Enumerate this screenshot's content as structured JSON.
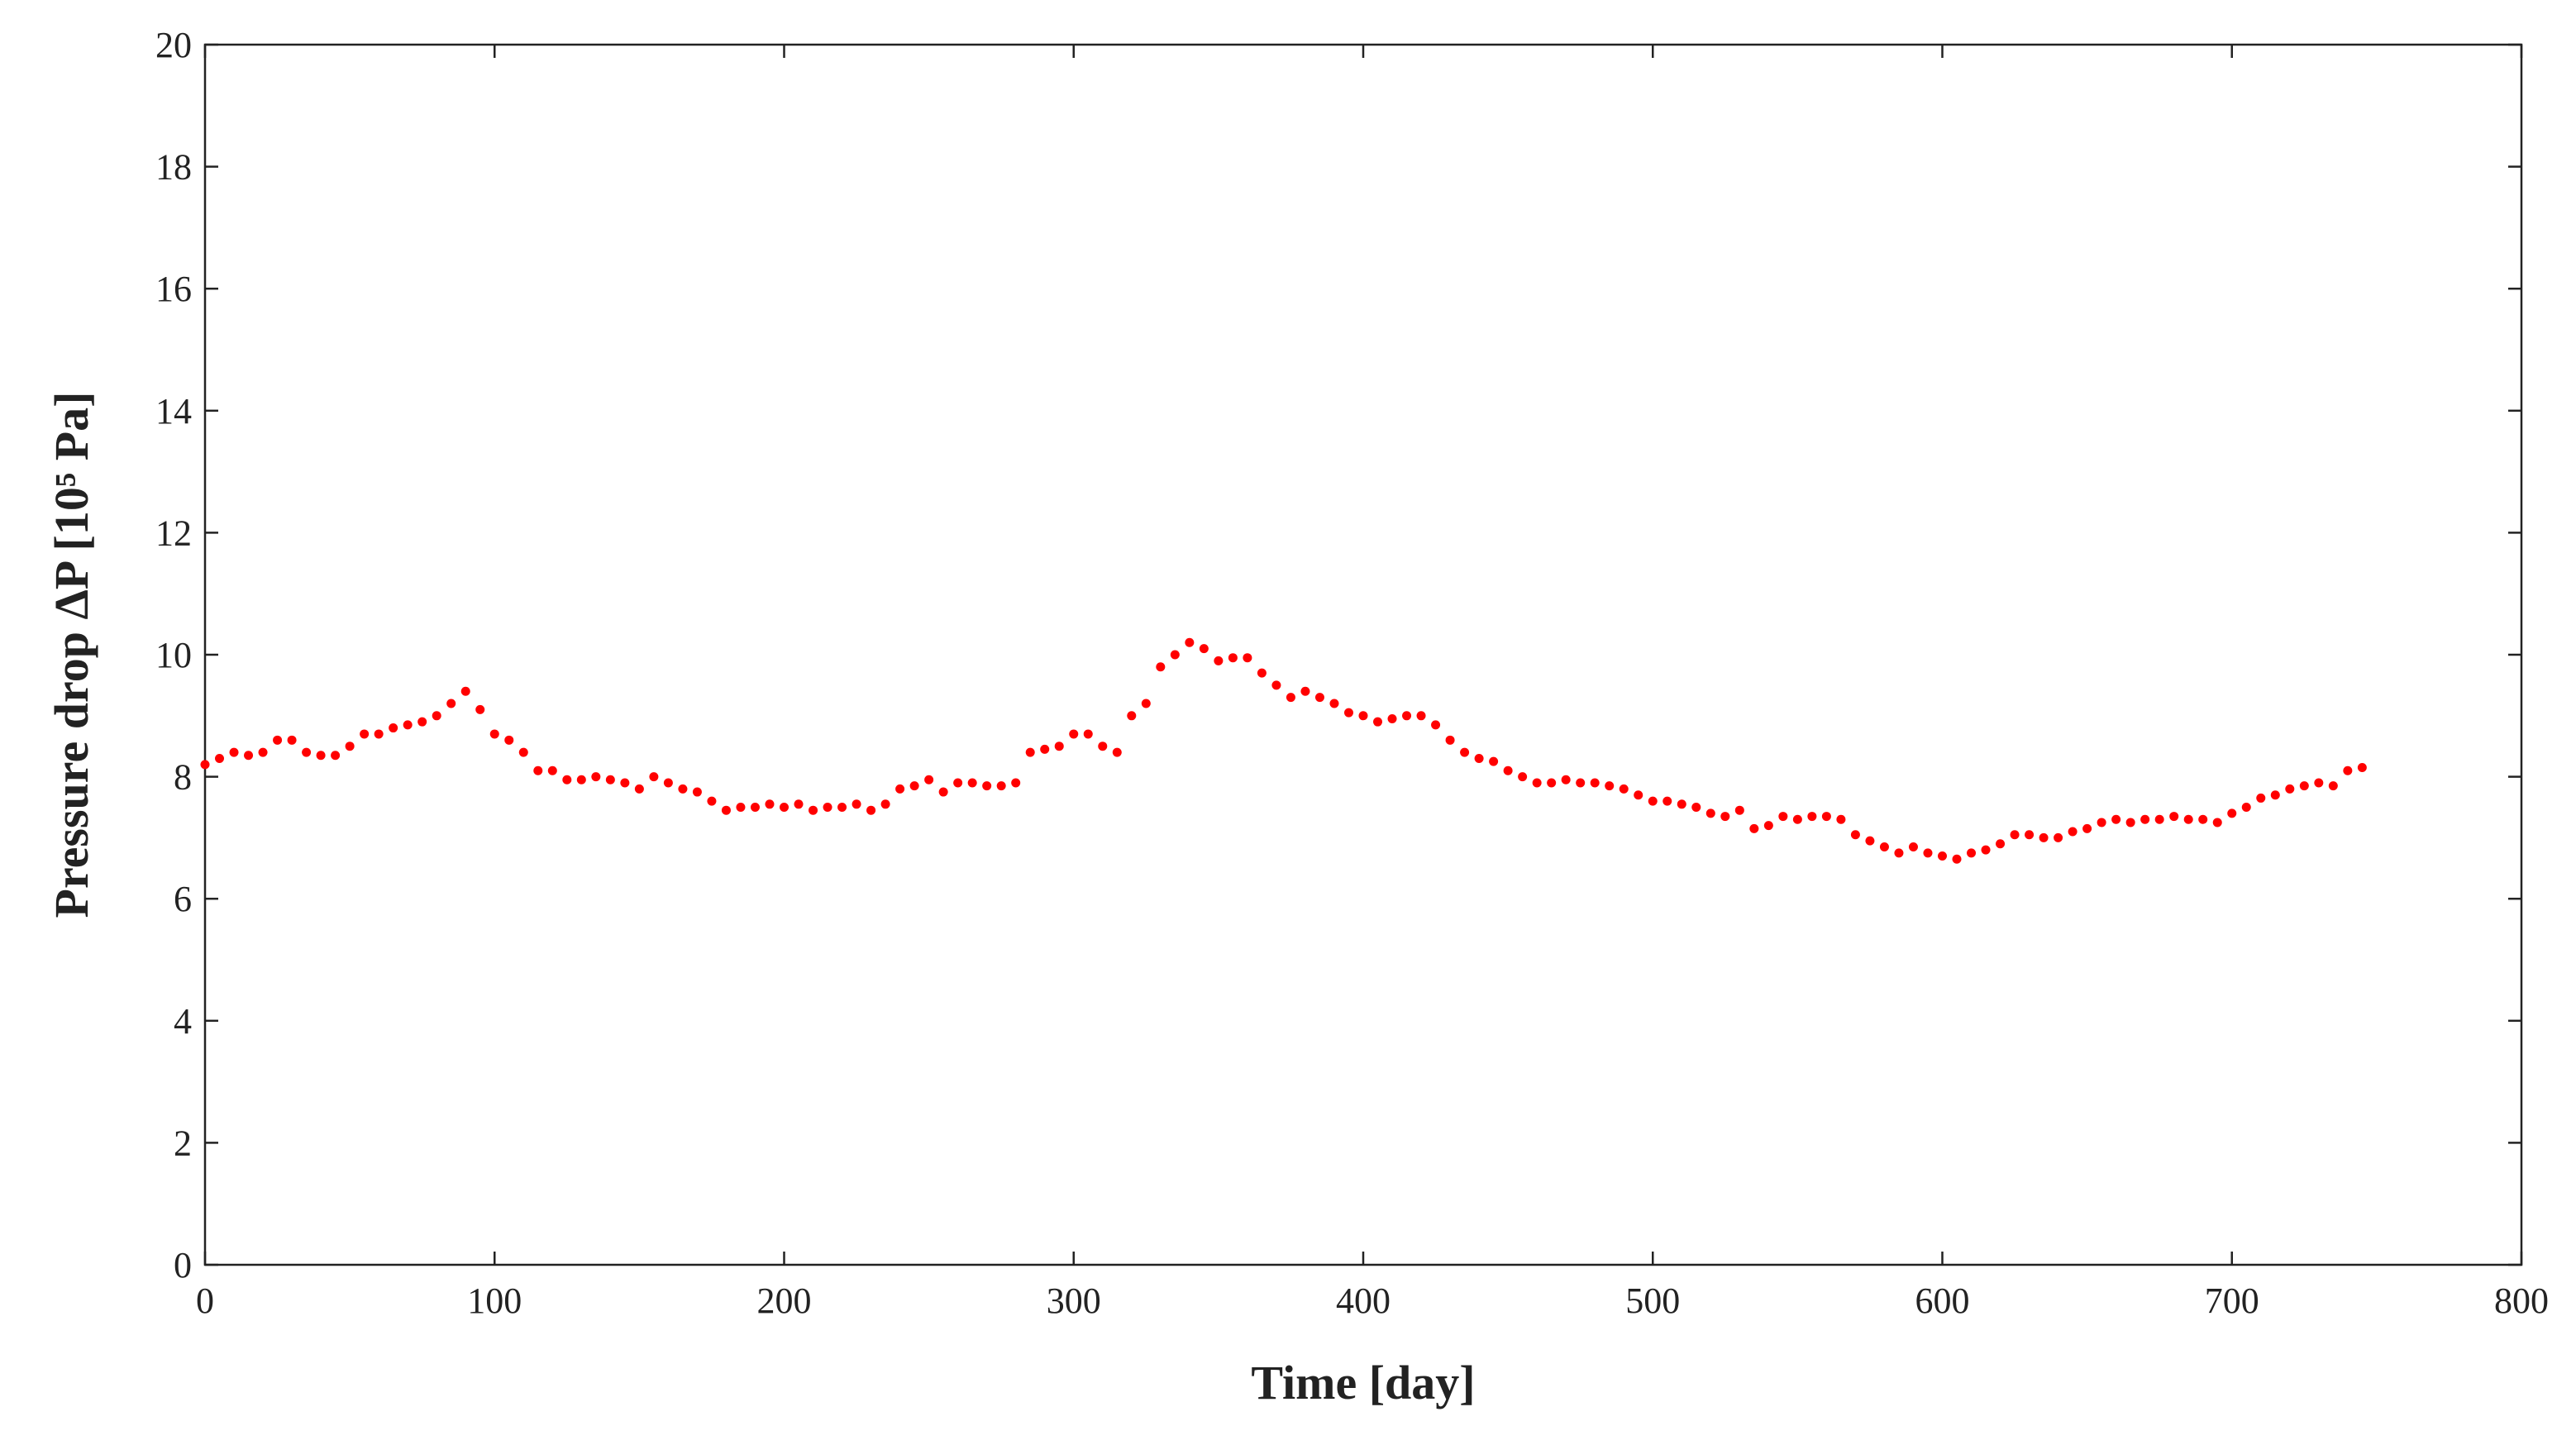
{
  "chart_data": {
    "type": "scatter",
    "x_label": "Time [day]",
    "y_label": "Pressure drop ΔP [10⁵ Pa]",
    "color": "#ff0000",
    "xlim": [
      0,
      800
    ],
    "xticks": [
      0,
      100,
      200,
      300,
      400,
      500,
      600,
      700,
      800
    ],
    "ylim": [
      0,
      20
    ],
    "yticks": [
      0,
      2,
      4,
      6,
      8,
      10,
      12,
      14,
      16,
      18,
      20
    ],
    "x": [
      0,
      5,
      10,
      15,
      20,
      25,
      30,
      35,
      40,
      45,
      50,
      55,
      60,
      65,
      70,
      75,
      80,
      85,
      90,
      95,
      100,
      105,
      110,
      115,
      120,
      125,
      130,
      135,
      140,
      145,
      150,
      155,
      160,
      165,
      170,
      175,
      180,
      185,
      190,
      195,
      200,
      205,
      210,
      215,
      220,
      225,
      230,
      235,
      240,
      245,
      250,
      255,
      260,
      265,
      270,
      275,
      280,
      285,
      290,
      295,
      300,
      305,
      310,
      315,
      320,
      325,
      330,
      335,
      340,
      345,
      350,
      355,
      360,
      365,
      370,
      375,
      380,
      385,
      390,
      395,
      400,
      405,
      410,
      415,
      420,
      425,
      430,
      435,
      440,
      445,
      450,
      455,
      460,
      465,
      470,
      475,
      480,
      485,
      490,
      495,
      500,
      505,
      510,
      515,
      520,
      525,
      530,
      535,
      540,
      545,
      550,
      555,
      560,
      565,
      570,
      575,
      580,
      585,
      590,
      595,
      600,
      605,
      610,
      615,
      620,
      625,
      630,
      635,
      640,
      645,
      650,
      655,
      660,
      665,
      670,
      675,
      680,
      685,
      690,
      695,
      700,
      705,
      710,
      715,
      720,
      725,
      730,
      735,
      740,
      745
    ],
    "values": [
      8.2,
      8.3,
      8.4,
      8.35,
      8.4,
      8.6,
      8.6,
      8.4,
      8.35,
      8.35,
      8.5,
      8.7,
      8.7,
      8.8,
      8.85,
      8.9,
      9.0,
      9.2,
      9.4,
      9.1,
      8.7,
      8.6,
      8.4,
      8.1,
      8.1,
      7.95,
      7.95,
      8.0,
      7.95,
      7.9,
      7.8,
      8.0,
      7.9,
      7.8,
      7.75,
      7.6,
      7.45,
      7.5,
      7.5,
      7.55,
      7.5,
      7.55,
      7.45,
      7.5,
      7.5,
      7.55,
      7.45,
      7.55,
      7.8,
      7.85,
      7.95,
      7.75,
      7.9,
      7.9,
      7.85,
      7.85,
      7.9,
      8.4,
      8.45,
      8.5,
      8.7,
      8.7,
      8.5,
      8.4,
      9.0,
      9.2,
      9.8,
      10.0,
      10.2,
      10.1,
      9.9,
      9.95,
      9.95,
      9.7,
      9.5,
      9.3,
      9.4,
      9.3,
      9.2,
      9.05,
      9.0,
      8.9,
      8.95,
      9.0,
      9.0,
      8.85,
      8.6,
      8.4,
      8.3,
      8.25,
      8.1,
      8.0,
      7.9,
      7.9,
      7.95,
      7.9,
      7.9,
      7.85,
      7.8,
      7.7,
      7.6,
      7.6,
      7.55,
      7.5,
      7.4,
      7.35,
      7.45,
      7.15,
      7.2,
      7.35,
      7.3,
      7.35,
      7.35,
      7.3,
      7.05,
      6.95,
      6.85,
      6.75,
      6.85,
      6.75,
      6.7,
      6.65,
      6.75,
      6.8,
      6.9,
      7.05,
      7.05,
      7.0,
      7.0,
      7.1,
      7.15,
      7.25,
      7.3,
      7.25,
      7.3,
      7.3,
      7.35,
      7.3,
      7.3,
      7.25,
      7.4,
      7.5,
      7.65,
      7.7,
      7.8,
      7.85,
      7.9,
      7.85,
      8.1,
      8.15
    ]
  }
}
